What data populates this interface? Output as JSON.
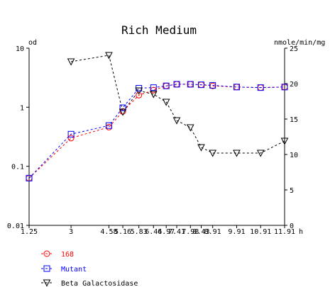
{
  "chart_data": {
    "type": "line",
    "title": "Rich Medium",
    "y_left_label": "od",
    "y_right_label": "nmole/min/mg",
    "x_unit_label": "h",
    "x_scale": "categorical-time",
    "x": [
      1.25,
      3,
      4.58,
      5.16,
      5.83,
      6.44,
      6.97,
      7.41,
      7.98,
      8.43,
      8.91,
      9.91,
      10.91,
      11.91
    ],
    "x_tick_labels": [
      "1.25",
      "3",
      "4.58",
      "5.16",
      "5.83",
      "6.44",
      "6.97",
      "7.41",
      "7.98",
      "8.43",
      "8.91",
      "9.91",
      "10.91",
      "11.91"
    ],
    "y_left_scale": "log",
    "y_left_range": [
      0.01,
      10
    ],
    "y_left_ticks": [
      0.01,
      0.1,
      1,
      10
    ],
    "y_left_tick_labels": [
      "0.01",
      "0.1",
      "1",
      "10"
    ],
    "y_right_range": [
      0,
      25
    ],
    "y_right_ticks": [
      0,
      5,
      10,
      15,
      20,
      25
    ],
    "y_right_tick_labels": [
      "0",
      "5",
      "10",
      "15",
      "20",
      "25"
    ],
    "grid": false,
    "legend_position": "bottom-left",
    "series": [
      {
        "name": "168",
        "axis": "left",
        "color": "#ff0000",
        "marker": "circle",
        "line_style": "dashed",
        "x": [
          1.25,
          3,
          4.58,
          5.16,
          5.83,
          6.44,
          6.97,
          7.41,
          7.98,
          8.43,
          8.91,
          9.91,
          10.91,
          11.91
        ],
        "values": [
          0.063,
          0.3,
          0.46,
          0.85,
          1.6,
          1.95,
          2.3,
          2.45,
          2.45,
          2.4,
          2.3,
          2.2,
          2.15,
          2.2
        ]
      },
      {
        "name": "Mutant",
        "axis": "left",
        "color": "#0000ff",
        "marker": "square",
        "line_style": "dashed",
        "x": [
          1.25,
          3,
          4.58,
          5.16,
          5.83,
          6.44,
          6.97,
          7.41,
          7.98,
          8.43,
          8.91,
          9.91,
          10.91,
          11.91
        ],
        "values": [
          0.063,
          0.35,
          0.49,
          0.98,
          2.1,
          2.15,
          2.3,
          2.45,
          2.45,
          2.4,
          2.35,
          2.2,
          2.15,
          2.2
        ]
      },
      {
        "name": "Beta Galactosidase",
        "axis": "right",
        "color": "#000000",
        "marker": "triangle-down",
        "line_style": "dashed",
        "x": [
          3,
          4.58,
          5.16,
          5.83,
          6.44,
          6.97,
          7.41,
          7.98,
          8.43,
          8.91,
          9.91,
          10.91,
          11.91
        ],
        "values": [
          23.1,
          24,
          16,
          19,
          18.5,
          17.4,
          14.8,
          13.8,
          11,
          10.2,
          10.2,
          10.2,
          11.9
        ]
      }
    ]
  }
}
